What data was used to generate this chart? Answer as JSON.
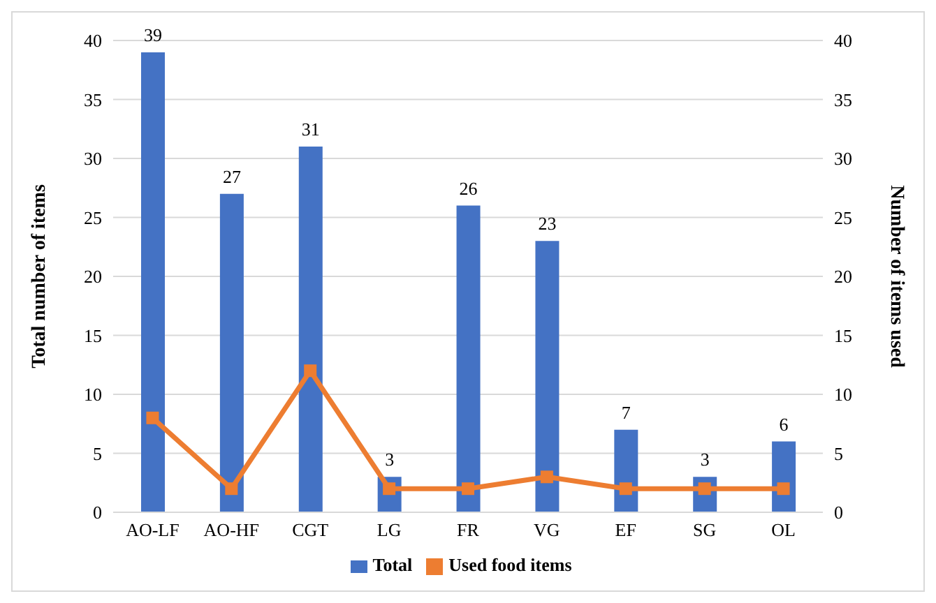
{
  "chart_data": {
    "type": "bar",
    "categories": [
      "AO-LF",
      "AO-HF",
      "CGT",
      "LG",
      "FR",
      "VG",
      "EF",
      "SG",
      "OL"
    ],
    "series": [
      {
        "name": "Total",
        "color": "#4472c4",
        "values": [
          39,
          27,
          31,
          3,
          26,
          23,
          7,
          3,
          6
        ],
        "value_labels": [
          "39",
          "27",
          "31",
          "3",
          "26",
          "23",
          "7",
          "3",
          "6"
        ]
      },
      {
        "name": "Used food items",
        "type": "line",
        "axis": "y2",
        "color": "#ed7d31",
        "marker": "square",
        "values": [
          8,
          2,
          12,
          2,
          2,
          3,
          2,
          2,
          2
        ]
      }
    ],
    "ylabel": "Total number of items",
    "y2label": "Number of items used",
    "ylim": [
      0,
      40
    ],
    "yticks": [
      0,
      5,
      10,
      15,
      20,
      25,
      30,
      35,
      40
    ],
    "y2lim": [
      0,
      40
    ],
    "y2ticks": [
      0,
      5,
      10,
      15,
      20,
      25,
      30,
      35,
      40
    ],
    "grid": "y",
    "legend": "bottom"
  }
}
